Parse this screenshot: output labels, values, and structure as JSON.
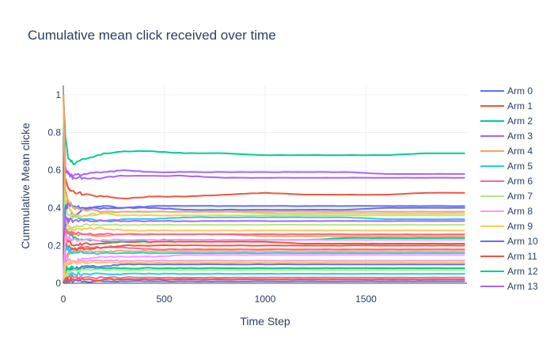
{
  "chart_data": {
    "type": "line",
    "title": "Cumulative mean click received over time",
    "xlabel": "Time Step",
    "ylabel": "Cummulative Mean clicke",
    "xlim": [
      0,
      2000
    ],
    "ylim": [
      0,
      1.05
    ],
    "x_ticks": [
      0,
      500,
      1000,
      1500
    ],
    "x_tick_labels": [
      "0",
      "500",
      "1000",
      "1500"
    ],
    "y_ticks": [
      0,
      0.2,
      0.4,
      0.6,
      0.8,
      1
    ],
    "y_tick_labels": [
      "0",
      "0.2",
      "0.4",
      "0.6",
      "0.8",
      "1"
    ],
    "grid": true,
    "legend_position": "right",
    "x": [
      1,
      10,
      25,
      50,
      100,
      200,
      300,
      450,
      600,
      800,
      1000,
      1200,
      1400,
      1600,
      1800,
      1990
    ],
    "series": [
      {
        "name": "Arm 0",
        "color": "#636efa",
        "values": [
          0,
          0.3,
          0.33,
          0.36,
          0.39,
          0.41,
          0.4,
          0.4,
          0.39,
          0.39,
          0.39,
          0.39,
          0.39,
          0.4,
          0.4,
          0.4
        ]
      },
      {
        "name": "Arm 1",
        "color": "#EF553B",
        "values": [
          1,
          0.55,
          0.5,
          0.49,
          0.47,
          0.46,
          0.45,
          0.46,
          0.46,
          0.47,
          0.48,
          0.47,
          0.47,
          0.47,
          0.48,
          0.48
        ]
      },
      {
        "name": "Arm 2",
        "color": "#00cc96",
        "values": [
          1,
          0.78,
          0.66,
          0.63,
          0.66,
          0.69,
          0.7,
          0.7,
          0.69,
          0.69,
          0.68,
          0.68,
          0.68,
          0.68,
          0.69,
          0.69
        ]
      },
      {
        "name": "Arm 3",
        "color": "#ab63fa",
        "values": [
          1,
          0.6,
          0.58,
          0.57,
          0.58,
          0.59,
          0.6,
          0.59,
          0.59,
          0.59,
          0.59,
          0.59,
          0.59,
          0.58,
          0.58,
          0.58
        ]
      },
      {
        "name": "Arm 4",
        "color": "#FFA15A",
        "values": [
          0,
          0.2,
          0.24,
          0.26,
          0.26,
          0.25,
          0.26,
          0.26,
          0.26,
          0.26,
          0.25,
          0.25,
          0.25,
          0.25,
          0.25,
          0.25
        ]
      },
      {
        "name": "Arm 5",
        "color": "#19d3f3",
        "values": [
          1,
          0.45,
          0.4,
          0.36,
          0.34,
          0.33,
          0.34,
          0.34,
          0.35,
          0.35,
          0.35,
          0.35,
          0.35,
          0.34,
          0.34,
          0.34
        ]
      },
      {
        "name": "Arm 6",
        "color": "#FF6692",
        "values": [
          0,
          0.1,
          0.16,
          0.18,
          0.19,
          0.19,
          0.19,
          0.18,
          0.18,
          0.18,
          0.18,
          0.18,
          0.18,
          0.18,
          0.18,
          0.18
        ]
      },
      {
        "name": "Arm 7",
        "color": "#B6E880",
        "values": [
          1,
          0.4,
          0.36,
          0.35,
          0.36,
          0.37,
          0.38,
          0.38,
          0.38,
          0.38,
          0.37,
          0.37,
          0.37,
          0.37,
          0.37,
          0.37
        ]
      },
      {
        "name": "Arm 8",
        "color": "#FF97FF",
        "values": [
          0,
          0.08,
          0.1,
          0.12,
          0.13,
          0.14,
          0.14,
          0.14,
          0.15,
          0.15,
          0.15,
          0.15,
          0.15,
          0.15,
          0.15,
          0.15
        ]
      },
      {
        "name": "Arm 9",
        "color": "#FECB52",
        "values": [
          1,
          0.35,
          0.3,
          0.28,
          0.29,
          0.29,
          0.28,
          0.28,
          0.28,
          0.28,
          0.28,
          0.28,
          0.28,
          0.28,
          0.28,
          0.28
        ]
      },
      {
        "name": "Arm 10",
        "color": "#636efa",
        "values": [
          0,
          0.05,
          0.07,
          0.08,
          0.09,
          0.09,
          0.1,
          0.1,
          0.1,
          0.1,
          0.1,
          0.1,
          0.1,
          0.1,
          0.1,
          0.1
        ]
      },
      {
        "name": "Arm 11",
        "color": "#EF553B",
        "values": [
          0,
          0.25,
          0.22,
          0.2,
          0.21,
          0.21,
          0.22,
          0.22,
          0.22,
          0.22,
          0.22,
          0.21,
          0.21,
          0.21,
          0.21,
          0.21
        ]
      },
      {
        "name": "Arm 12",
        "color": "#00cc96",
        "values": [
          1,
          0.3,
          0.27,
          0.24,
          0.23,
          0.22,
          0.22,
          0.23,
          0.23,
          0.23,
          0.23,
          0.23,
          0.24,
          0.24,
          0.24,
          0.24
        ]
      },
      {
        "name": "Arm 13",
        "color": "#ab63fa",
        "values": [
          1,
          0.62,
          0.58,
          0.56,
          0.56,
          0.56,
          0.57,
          0.57,
          0.57,
          0.56,
          0.56,
          0.56,
          0.56,
          0.56,
          0.56,
          0.56
        ]
      },
      {
        "color": "#FFA15A",
        "values": [
          0,
          0.12,
          0.15,
          0.17,
          0.17,
          0.17,
          0.17,
          0.17,
          0.17,
          0.17,
          0.17,
          0.17,
          0.17,
          0.17,
          0.17,
          0.17
        ]
      },
      {
        "color": "#19d3f3",
        "values": [
          0,
          0.06,
          0.05,
          0.05,
          0.05,
          0.05,
          0.05,
          0.05,
          0.05,
          0.05,
          0.05,
          0.05,
          0.05,
          0.05,
          0.05,
          0.05
        ]
      },
      {
        "color": "#FF6692",
        "values": [
          0,
          0.02,
          0.03,
          0.03,
          0.03,
          0.03,
          0.03,
          0.03,
          0.03,
          0.03,
          0.03,
          0.03,
          0.03,
          0.03,
          0.03,
          0.03
        ]
      },
      {
        "color": "#B6E880",
        "values": [
          1,
          0.3,
          0.28,
          0.3,
          0.31,
          0.31,
          0.31,
          0.31,
          0.31,
          0.31,
          0.31,
          0.31,
          0.31,
          0.31,
          0.31,
          0.31
        ]
      },
      {
        "color": "#FF97FF",
        "values": [
          0,
          0.15,
          0.12,
          0.11,
          0.12,
          0.12,
          0.12,
          0.12,
          0.12,
          0.12,
          0.12,
          0.12,
          0.12,
          0.12,
          0.12,
          0.12
        ]
      },
      {
        "color": "#FECB52",
        "values": [
          1,
          0.45,
          0.4,
          0.36,
          0.36,
          0.37,
          0.36,
          0.36,
          0.36,
          0.36,
          0.36,
          0.36,
          0.36,
          0.36,
          0.36,
          0.36
        ]
      },
      {
        "color": "#636efa",
        "values": [
          0,
          0.4,
          0.42,
          0.41,
          0.4,
          0.4,
          0.4,
          0.41,
          0.41,
          0.41,
          0.41,
          0.41,
          0.41,
          0.41,
          0.41,
          0.41
        ]
      },
      {
        "color": "#EF553B",
        "values": [
          0,
          0.2,
          0.19,
          0.18,
          0.18,
          0.19,
          0.2,
          0.2,
          0.2,
          0.2,
          0.2,
          0.2,
          0.2,
          0.2,
          0.2,
          0.2
        ]
      },
      {
        "color": "#00cc96",
        "values": [
          0,
          0.08,
          0.08,
          0.08,
          0.08,
          0.08,
          0.08,
          0.08,
          0.08,
          0.08,
          0.08,
          0.08,
          0.08,
          0.08,
          0.08,
          0.08
        ]
      },
      {
        "color": "#ab63fa",
        "values": [
          0,
          0.35,
          0.34,
          0.33,
          0.33,
          0.33,
          0.33,
          0.33,
          0.33,
          0.33,
          0.33,
          0.33,
          0.33,
          0.33,
          0.33,
          0.33
        ]
      },
      {
        "color": "#FFA15A",
        "values": [
          1,
          0.5,
          0.44,
          0.4,
          0.39,
          0.38,
          0.38,
          0.38,
          0.38,
          0.38,
          0.38,
          0.38,
          0.38,
          0.38,
          0.38,
          0.38
        ]
      },
      {
        "color": "#19d3f3",
        "values": [
          0,
          0.2,
          0.18,
          0.16,
          0.16,
          0.16,
          0.16,
          0.16,
          0.16,
          0.16,
          0.16,
          0.16,
          0.16,
          0.16,
          0.16,
          0.16
        ]
      },
      {
        "color": "#FF6692",
        "values": [
          0,
          0.28,
          0.27,
          0.27,
          0.26,
          0.26,
          0.26,
          0.26,
          0.26,
          0.26,
          0.26,
          0.26,
          0.26,
          0.26,
          0.26,
          0.26
        ]
      },
      {
        "color": "#B6E880",
        "values": [
          0,
          0.04,
          0.06,
          0.07,
          0.07,
          0.07,
          0.07,
          0.07,
          0.07,
          0.07,
          0.07,
          0.07,
          0.07,
          0.07,
          0.07,
          0.07
        ]
      },
      {
        "color": "#FF97FF",
        "values": [
          0,
          0.25,
          0.24,
          0.23,
          0.23,
          0.23,
          0.23,
          0.23,
          0.23,
          0.23,
          0.23,
          0.23,
          0.23,
          0.23,
          0.23,
          0.23
        ]
      },
      {
        "color": "#FECB52",
        "values": [
          0,
          0.1,
          0.11,
          0.11,
          0.11,
          0.11,
          0.11,
          0.11,
          0.11,
          0.11,
          0.11,
          0.11,
          0.11,
          0.11,
          0.11,
          0.11
        ]
      },
      {
        "color": "#636efa",
        "values": [
          0,
          0.01,
          0.01,
          0.01,
          0.01,
          0.01,
          0.01,
          0.01,
          0.01,
          0.01,
          0.01,
          0.01,
          0.01,
          0.01,
          0.01,
          0.01
        ]
      },
      {
        "color": "#EF553B",
        "values": [
          0,
          0.02,
          0.02,
          0.02,
          0.02,
          0.02,
          0.02,
          0.02,
          0.02,
          0.02,
          0.02,
          0.02,
          0.02,
          0.02,
          0.02,
          0.02
        ]
      }
    ]
  }
}
